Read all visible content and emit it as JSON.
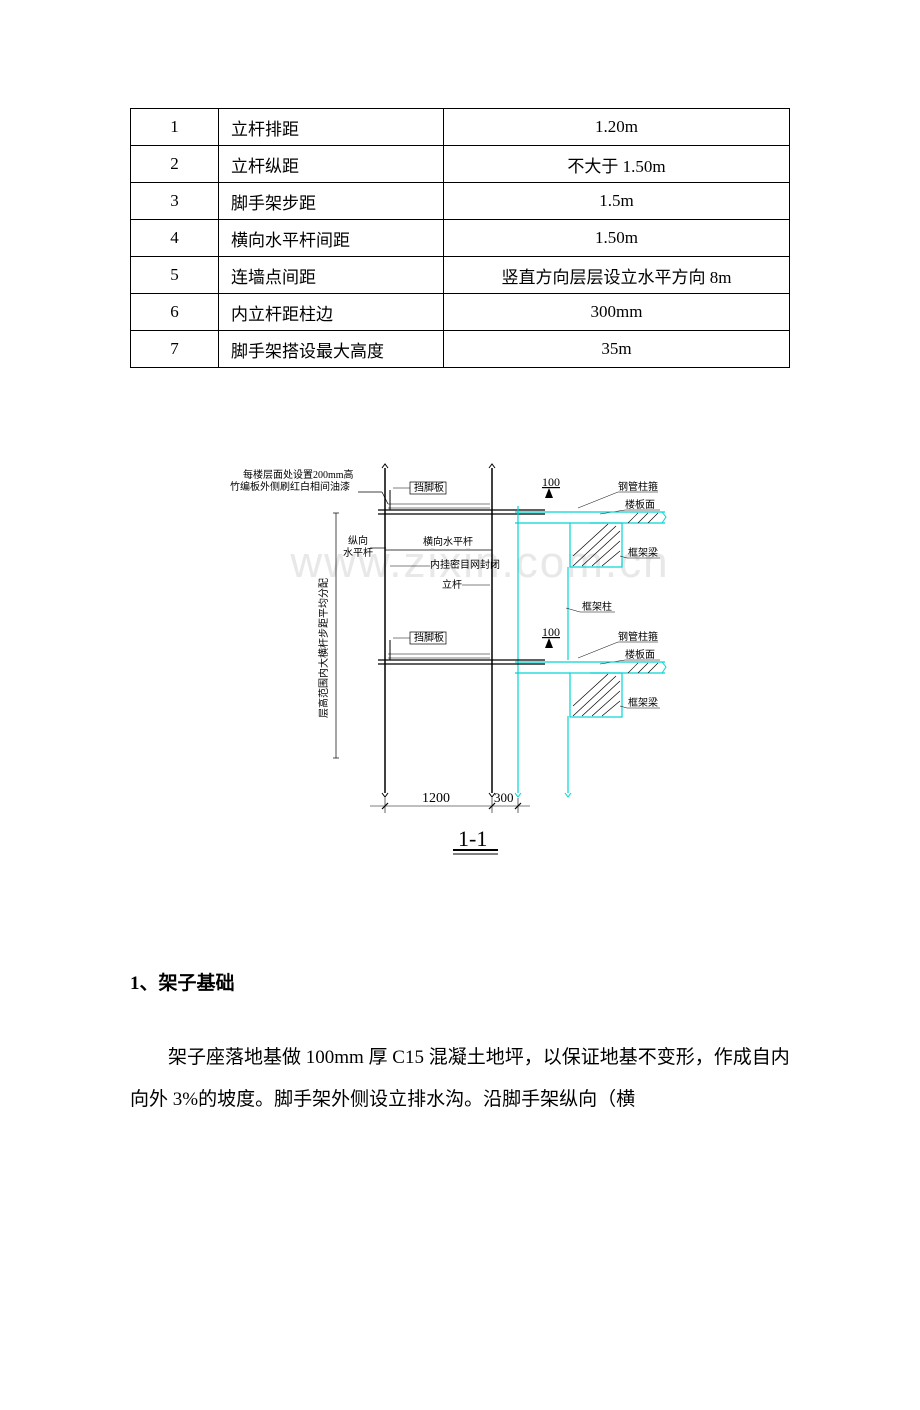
{
  "table": {
    "rows": [
      {
        "num": "1",
        "name": "立杆排距",
        "val": "1.20m"
      },
      {
        "num": "2",
        "name": "立杆纵距",
        "val": "不大于 1.50m"
      },
      {
        "num": "3",
        "name": "脚手架步距",
        "val": "1.5m"
      },
      {
        "num": "4",
        "name": "横向水平杆间距",
        "val": "1.50m"
      },
      {
        "num": "5",
        "name": "连墙点间距",
        "val": "竖直方向层层设立水平方向 8m"
      },
      {
        "num": "6",
        "name": "内立杆距柱边",
        "val": "300mm"
      },
      {
        "num": "7",
        "name": "脚手架搭设最大高度",
        "val": "35m"
      }
    ]
  },
  "diagram": {
    "note_top1": "每楼层面处设置200mm高",
    "note_top2": "竹编板外侧刷红白相间油漆",
    "labels": {
      "dangjiaoban": "挡脚板",
      "zongxiang": "纵向",
      "shuipinggan": "水平杆",
      "hengxiang": "横向水平杆",
      "neigua": "内挂密目网封闭",
      "ligan": "立杆",
      "gangguan": "钢管柱箍",
      "loubanmian": "楼板面",
      "kuangjialiang": "框架梁",
      "kuangjiazhu": "框架柱",
      "d100": "100",
      "d1200": "1200",
      "d300": "300",
      "ceng_note": "层高范围内大横杆步距平均分配",
      "section_label": "1-1"
    },
    "colors": {
      "cyan": "#00d4d4",
      "black": "#000000",
      "hatch": "#000000"
    }
  },
  "watermark": "www.zixin.com.cn",
  "section1": {
    "heading": "1、架子基础",
    "body": "架子座落地基做 100mm 厚 C15 混凝土地坪，以保证地基不变形，作成自内向外 3%的坡度。脚手架外侧设立排水沟。沿脚手架纵向（横"
  }
}
